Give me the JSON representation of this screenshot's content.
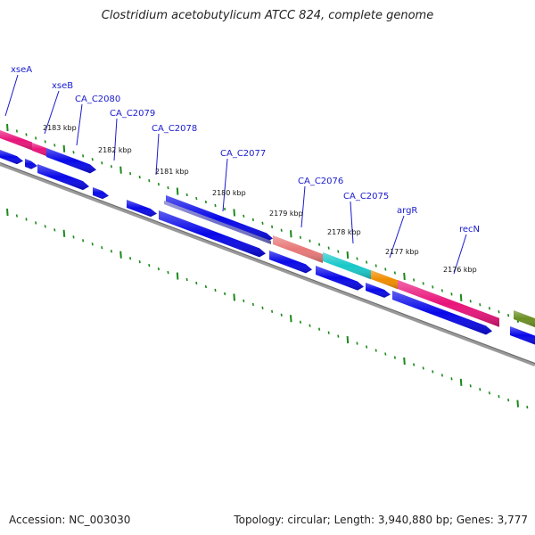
{
  "title": "Clostridium acetobutylicum ATCC 824, complete genome",
  "footer": {
    "accession": "Accession: NC_003030",
    "summary": "Topology: circular; Length: 3,940,880 bp; Genes: 3,777"
  },
  "gene_labels": [
    "xseA",
    "xseB",
    "CA_C2080",
    "CA_C2079",
    "CA_C2078",
    "CA_C2077",
    "CA_C2076",
    "CA_C2075",
    "argR",
    "recN"
  ],
  "kbp_labels": [
    "2183 kbp",
    "2182 kbp",
    "2181 kbp",
    "2180 kbp",
    "2179 kbp",
    "2178 kbp",
    "2177 kbp",
    "2176 kbp"
  ],
  "colors": {
    "pink": "#e8147a",
    "salmon": "#e87878",
    "cyan": "#18c8c8",
    "orange": "#f08c00",
    "olive": "#6b8e23",
    "blue": "#0808e8",
    "slate": "#7070c8",
    "backbone": "#808080",
    "tick": "#1a8a1a",
    "label": "#1a1acd"
  }
}
